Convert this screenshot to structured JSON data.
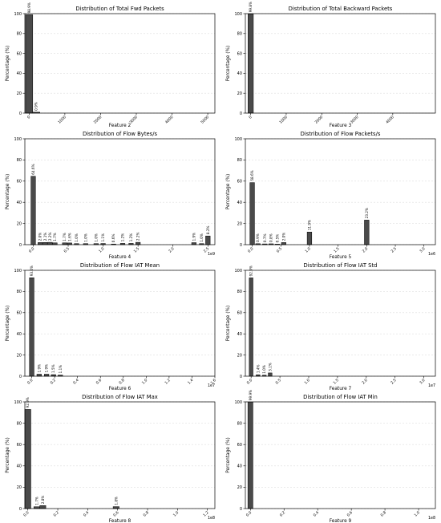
{
  "chart_data": [
    {
      "type": "bar",
      "title": "Distribution of Total Fwd Packets",
      "xlabel": "Feature 2",
      "ylabel": "Percentage (%)",
      "ylim": [
        0,
        100
      ],
      "yticks": [
        0,
        20,
        40,
        60,
        80,
        100
      ],
      "xlim": [
        -120,
        5200
      ],
      "xticks": [
        0,
        1000,
        2000,
        3000,
        4000,
        5000
      ],
      "xtick_labels": [
        "0",
        "1000",
        "2000",
        "3000",
        "4000",
        "5000"
      ],
      "x_offset_label": "",
      "grid": "y",
      "bin_width": 200,
      "bars": [
        {
          "x": 0,
          "value": 98.9,
          "label": "98.9%"
        },
        {
          "x": 200,
          "value": 0.9,
          "label": "0.9%"
        }
      ]
    },
    {
      "type": "bar",
      "title": "Distribution of Total Backward Packets",
      "xlabel": "Feature 3",
      "ylabel": "Percentage (%)",
      "ylim": [
        0,
        100
      ],
      "yticks": [
        0,
        20,
        40,
        60,
        80,
        100
      ],
      "xlim": [
        -150,
        5200
      ],
      "xticks": [
        0,
        1000,
        2000,
        3000,
        4000
      ],
      "xtick_labels": [
        "0",
        "1000",
        "2000",
        "3000",
        "4000"
      ],
      "x_offset_label": "",
      "grid": "y",
      "bin_width": 150,
      "bars": [
        {
          "x": 0,
          "value": 99.8,
          "label": "99.8%"
        }
      ]
    },
    {
      "type": "bar",
      "title": "Distribution of Flow Bytes/s",
      "xlabel": "Feature 4",
      "ylabel": "Percentage (%)",
      "ylim": [
        0,
        100
      ],
      "yticks": [
        0,
        20,
        40,
        60,
        80,
        100
      ],
      "xlim": [
        -0.12,
        2.6
      ],
      "xticks": [
        0.0,
        0.5,
        1.0,
        1.5,
        2.0,
        2.5
      ],
      "xtick_labels": [
        "0.0",
        "0.5",
        "1.0",
        "1.5",
        "2.0",
        "2.5"
      ],
      "x_offset_label": "1e9",
      "grid": "y",
      "bin_width": 0.065,
      "bars": [
        {
          "x": 0.0,
          "value": 64.6,
          "label": "64.6%"
        },
        {
          "x": 0.1,
          "value": 2.0,
          "label": "2.0%"
        },
        {
          "x": 0.17,
          "value": 2.1,
          "label": "2.1%"
        },
        {
          "x": 0.24,
          "value": 2.2,
          "label": "2.2%"
        },
        {
          "x": 0.31,
          "value": 1.7,
          "label": "1.7%"
        },
        {
          "x": 0.45,
          "value": 1.7,
          "label": "1.7%"
        },
        {
          "x": 0.52,
          "value": 1.6,
          "label": "1.6%"
        },
        {
          "x": 0.62,
          "value": 1.0,
          "label": "1.0%"
        },
        {
          "x": 0.75,
          "value": 1.0,
          "label": "1.0%"
        },
        {
          "x": 0.9,
          "value": 1.0,
          "label": "1.0%"
        },
        {
          "x": 1.0,
          "value": 1.1,
          "label": "1.1%"
        },
        {
          "x": 1.15,
          "value": 0.6,
          "label": "0.6%"
        },
        {
          "x": 1.28,
          "value": 1.2,
          "label": "1.2%"
        },
        {
          "x": 1.4,
          "value": 1.2,
          "label": "1.2%"
        },
        {
          "x": 1.5,
          "value": 2.2,
          "label": "2.2%"
        },
        {
          "x": 2.3,
          "value": 1.9,
          "label": "1.9%"
        },
        {
          "x": 2.41,
          "value": 1.0,
          "label": "1.0%"
        },
        {
          "x": 2.5,
          "value": 8.2,
          "label": "8.2%"
        }
      ]
    },
    {
      "type": "bar",
      "title": "Distribution of Flow Packets/s",
      "xlabel": "Feature 5",
      "ylabel": "Percentage (%)",
      "ylim": [
        0,
        100
      ],
      "yticks": [
        0,
        20,
        40,
        60,
        80,
        100
      ],
      "xlim": [
        -0.12,
        3.2
      ],
      "xticks": [
        0.0,
        0.5,
        1.0,
        1.5,
        2.0,
        2.5,
        3.0
      ],
      "xtick_labels": [
        "0.0",
        "0.5",
        "1.0",
        "1.5",
        "2.0",
        "2.5",
        "3.0"
      ],
      "x_offset_label": "1e6",
      "grid": "y",
      "bin_width": 0.08,
      "bars": [
        {
          "x": 0.0,
          "value": 58.6,
          "label": "58.6%"
        },
        {
          "x": 0.1,
          "value": 0.9,
          "label": "0.9%"
        },
        {
          "x": 0.22,
          "value": 0.7,
          "label": "0.7%"
        },
        {
          "x": 0.33,
          "value": 0.8,
          "label": "0.8%"
        },
        {
          "x": 0.44,
          "value": 0.5,
          "label": "0.5%"
        },
        {
          "x": 0.55,
          "value": 2.0,
          "label": "2.0%"
        },
        {
          "x": 1.0,
          "value": 11.9,
          "label": "11.9%"
        },
        {
          "x": 2.0,
          "value": 23.2,
          "label": "23.2%"
        }
      ]
    },
    {
      "type": "bar",
      "title": "Distribution of Flow IAT Mean",
      "xlabel": "Feature 6",
      "ylabel": "Percentage (%)",
      "ylim": [
        0,
        100
      ],
      "yticks": [
        0,
        20,
        40,
        60,
        80,
        100
      ],
      "xlim": [
        -0.06,
        1.6
      ],
      "xticks": [
        0.0,
        0.2,
        0.4,
        0.6,
        0.8,
        1.0,
        1.2,
        1.4,
        1.6
      ],
      "xtick_labels": [
        "0.0",
        "0.2",
        "0.4",
        "0.6",
        "0.8",
        "1.0",
        "1.2",
        "1.4",
        "1.6"
      ],
      "x_offset_label": "1e7",
      "grid": "y",
      "bin_width": 0.04,
      "bars": [
        {
          "x": 0.0,
          "value": 93.0,
          "label": "93.0%"
        },
        {
          "x": 0.065,
          "value": 1.9,
          "label": "1.9%"
        },
        {
          "x": 0.13,
          "value": 1.9,
          "label": "1.9%"
        },
        {
          "x": 0.19,
          "value": 1.5,
          "label": "1.5%"
        },
        {
          "x": 0.25,
          "value": 1.1,
          "label": "1.1%"
        }
      ]
    },
    {
      "type": "bar",
      "title": "Distribution of Flow IAT Std",
      "xlabel": "Feature 7",
      "ylabel": "Percentage (%)",
      "ylim": [
        0,
        100
      ],
      "yticks": [
        0,
        20,
        40,
        60,
        80,
        100
      ],
      "xlim": [
        -0.1,
        3.2
      ],
      "xticks": [
        0.0,
        0.5,
        1.0,
        1.5,
        2.0,
        2.5,
        3.0
      ],
      "xtick_labels": [
        "0.0",
        "0.5",
        "1.0",
        "1.5",
        "2.0",
        "2.5",
        "3.0"
      ],
      "x_offset_label": "1e7",
      "grid": "y",
      "bin_width": 0.065,
      "bars": [
        {
          "x": 0.0,
          "value": 92.9,
          "label": "92.9%"
        },
        {
          "x": 0.12,
          "value": 1.4,
          "label": "1.4%"
        },
        {
          "x": 0.23,
          "value": 1.0,
          "label": "1.0%"
        },
        {
          "x": 0.33,
          "value": 3.1,
          "label": "3.1%"
        }
      ]
    },
    {
      "type": "bar",
      "title": "Distribution of Flow IAT Max",
      "xlabel": "Feature 8",
      "ylabel": "Percentage (%)",
      "ylim": [
        0,
        100
      ],
      "yticks": [
        0,
        20,
        40,
        60,
        80,
        100
      ],
      "xlim": [
        -0.02,
        1.25
      ],
      "xticks": [
        0.0,
        0.2,
        0.4,
        0.6,
        0.8,
        1.0,
        1.2
      ],
      "xtick_labels": [
        "0.0",
        "0.2",
        "0.4",
        "0.6",
        "0.8",
        "1.0",
        "1.2"
      ],
      "x_offset_label": "1e8",
      "grid": "y",
      "bin_width": 0.04,
      "bars": [
        {
          "x": 0.0,
          "value": 92.9,
          "label": "92.9%"
        },
        {
          "x": 0.06,
          "value": 1.7,
          "label": "1.7%"
        },
        {
          "x": 0.1,
          "value": 2.8,
          "label": "2.8%"
        },
        {
          "x": 0.59,
          "value": 1.8,
          "label": "1.8%"
        }
      ]
    },
    {
      "type": "bar",
      "title": "Distribution of Flow IAT Min",
      "xlabel": "Feature 9",
      "ylabel": "Percentage (%)",
      "ylim": [
        0,
        100
      ],
      "yticks": [
        0,
        20,
        40,
        60,
        80,
        100
      ],
      "xlim": [
        -0.03,
        1.1
      ],
      "xticks": [
        0.0,
        0.2,
        0.4,
        0.6,
        0.8,
        1.0
      ],
      "xtick_labels": [
        "0.0",
        "0.2",
        "0.4",
        "0.6",
        "0.8",
        "1.0"
      ],
      "x_offset_label": "1e8",
      "grid": "y",
      "bin_width": 0.03,
      "bars": [
        {
          "x": 0.0,
          "value": 99.9,
          "label": "99.9%"
        }
      ]
    }
  ],
  "colors": {
    "bar_fill": "#4a4a4a",
    "bar_edge": "#000000",
    "grid": "#dddddd",
    "axis": "#000000",
    "text": "#000000"
  }
}
